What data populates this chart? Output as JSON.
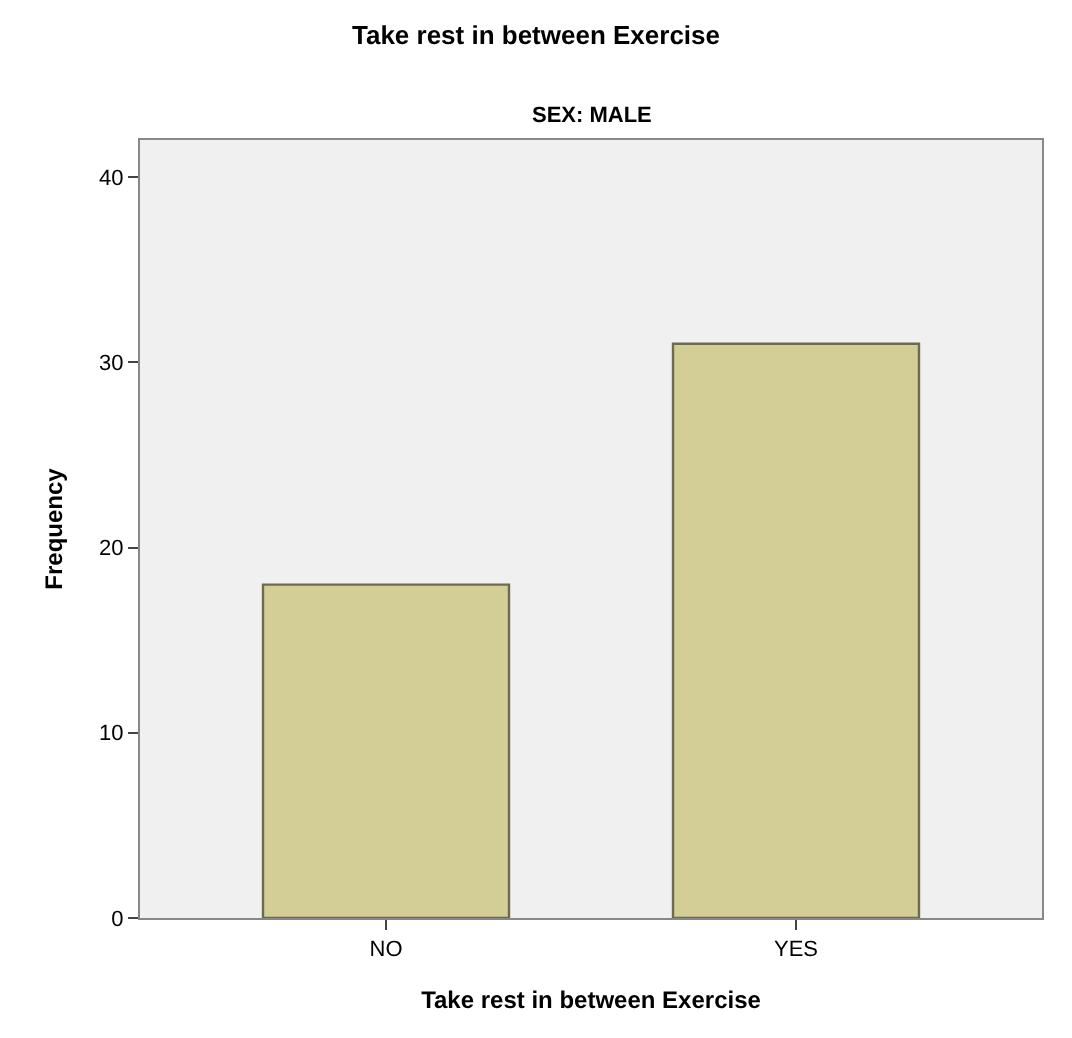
{
  "chart_data": {
    "type": "bar",
    "title": "Take rest in between Exercise",
    "subtitle": "SEX: MALE",
    "xlabel": "Take rest in between Exercise",
    "ylabel": "Frequency",
    "categories": [
      "NO",
      "YES"
    ],
    "values": [
      18,
      31
    ],
    "color": "#d3cd96",
    "ylim": [
      0,
      42
    ],
    "yticks": [
      0,
      10,
      20,
      30,
      40
    ],
    "grid": false
  }
}
